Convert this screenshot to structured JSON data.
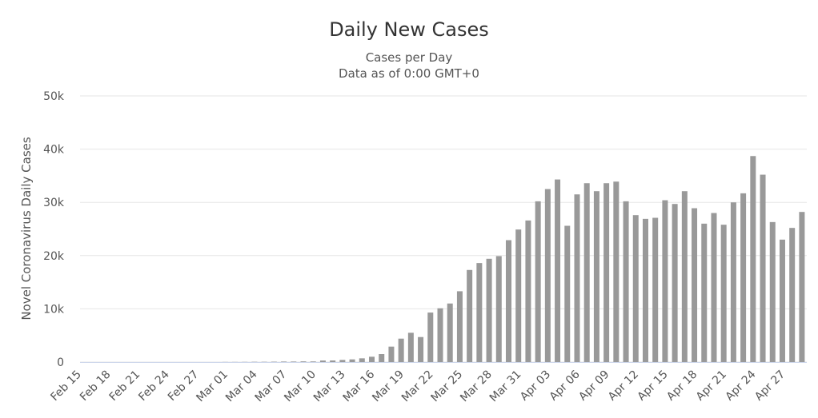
{
  "chart_data": {
    "type": "bar",
    "title": "Daily New Cases",
    "subtitle": "Cases per Day",
    "subtitle2": "Data as of 0:00 GMT+0",
    "y_label": "Novel Coronavirus Daily Cases",
    "categories": [
      "Feb 15",
      null,
      null,
      "Feb 18",
      null,
      null,
      "Feb 21",
      null,
      null,
      "Feb 24",
      null,
      null,
      "Feb 27",
      null,
      null,
      "Mar 01",
      null,
      null,
      "Mar 04",
      null,
      null,
      "Mar 07",
      null,
      null,
      "Mar 10",
      null,
      null,
      "Mar 13",
      null,
      null,
      "Mar 16",
      null,
      null,
      "Mar 19",
      null,
      null,
      "Mar 22",
      null,
      null,
      "Mar 25",
      null,
      null,
      "Mar 28",
      null,
      null,
      "Mar 31",
      null,
      null,
      "Apr 03",
      null,
      null,
      "Apr 06",
      null,
      null,
      "Apr 09",
      null,
      null,
      "Apr 12",
      null,
      null,
      "Apr 15",
      null,
      null,
      "Apr 18",
      null,
      null,
      "Apr 21",
      null,
      null,
      "Apr 24",
      null,
      null,
      "Apr 27",
      null,
      null
    ],
    "values": [
      0,
      0,
      0,
      0,
      0,
      0,
      0,
      0,
      0,
      0,
      0,
      0,
      0,
      0,
      0,
      20,
      20,
      30,
      50,
      50,
      70,
      100,
      100,
      130,
      120,
      290,
      300,
      400,
      500,
      700,
      1000,
      1500,
      2900,
      4400,
      5500,
      4700,
      9300,
      10100,
      11000,
      13300,
      17300,
      18600,
      19400,
      19900,
      22900,
      24900,
      26600,
      30200,
      32500,
      34300,
      25600,
      31500,
      33600,
      32100,
      33600,
      33900,
      30200,
      27600,
      26900,
      27100,
      30400,
      29700,
      32100,
      28900,
      26000,
      28000,
      25800,
      30000,
      31700,
      38700,
      35200,
      26300,
      23000,
      25200,
      28200
    ],
    "color": "#999999",
    "ylim": [
      0,
      50000
    ],
    "yticks": [
      0,
      {
        "value": 10000,
        "label": "10k"
      },
      {
        "value": 20000,
        "label": "20k"
      },
      {
        "value": 30000,
        "label": "30k"
      },
      {
        "value": 40000,
        "label": "40k"
      },
      {
        "value": 50000,
        "label": "50k"
      }
    ],
    "grid": true
  }
}
